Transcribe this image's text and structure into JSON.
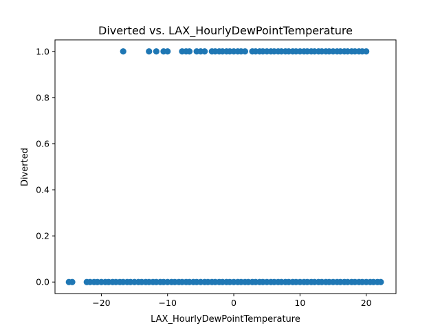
{
  "chart_data": {
    "type": "scatter",
    "title": "Diverted vs. LAX_HourlyDewPointTemperature",
    "xlabel": "LAX_HourlyDewPointTemperature",
    "ylabel": "Diverted",
    "xlim": [
      -27,
      24.5
    ],
    "ylim": [
      -0.05,
      1.05
    ],
    "xticks": [
      -20,
      -10,
      0,
      10,
      20
    ],
    "xtick_labels": [
      "−20",
      "−10",
      "0",
      "10",
      "20"
    ],
    "yticks": [
      0.0,
      0.2,
      0.4,
      0.6,
      0.8,
      1.0
    ],
    "ytick_labels": [
      "0.0",
      "0.2",
      "0.4",
      "0.6",
      "0.8",
      "1.0"
    ],
    "grid": false,
    "color": "#1f77b4",
    "series": [
      {
        "values_at_y1": [
          -16.7,
          -12.8,
          -11.7,
          -10.6,
          -10.0,
          -7.8,
          -7.2,
          -6.7,
          -5.6,
          -5.0,
          -4.4,
          -3.3,
          -2.8,
          -2.2,
          -1.7,
          -1.1,
          -0.6,
          0.0,
          0.6,
          1.1,
          1.7,
          2.8,
          3.3,
          3.9,
          4.4,
          5.0,
          5.6,
          6.1,
          6.7,
          7.2,
          7.8,
          8.3,
          8.9,
          9.4,
          10.0,
          10.6,
          11.1,
          11.7,
          12.2,
          12.8,
          13.3,
          13.9,
          14.4,
          15.0,
          15.6,
          16.1,
          16.7,
          17.2,
          17.8,
          18.3,
          18.9,
          19.4,
          20.0
        ],
        "values_at_y0": [
          -24.9,
          -24.4,
          -22.2,
          -21.7,
          -21.1,
          -20.6,
          -20.0,
          -19.4,
          -18.9,
          -18.3,
          -17.8,
          -17.2,
          -16.7,
          -16.1,
          -15.6,
          -15.0,
          -14.4,
          -13.9,
          -13.3,
          -12.8,
          -12.2,
          -11.7,
          -11.1,
          -10.6,
          -10.0,
          -9.4,
          -8.9,
          -8.3,
          -7.8,
          -7.2,
          -6.7,
          -6.1,
          -5.6,
          -5.0,
          -4.4,
          -3.9,
          -3.3,
          -2.8,
          -2.2,
          -1.7,
          -1.1,
          -0.6,
          0.0,
          0.6,
          1.1,
          1.7,
          2.2,
          2.8,
          3.3,
          3.9,
          4.4,
          5.0,
          5.6,
          6.1,
          6.7,
          7.2,
          7.8,
          8.3,
          8.9,
          9.4,
          10.0,
          10.6,
          11.1,
          11.7,
          12.2,
          12.8,
          13.3,
          13.9,
          14.4,
          15.0,
          15.6,
          16.1,
          16.7,
          17.2,
          17.8,
          18.3,
          18.9,
          19.4,
          20.0,
          20.6,
          21.1,
          21.7,
          22.2
        ]
      }
    ]
  }
}
